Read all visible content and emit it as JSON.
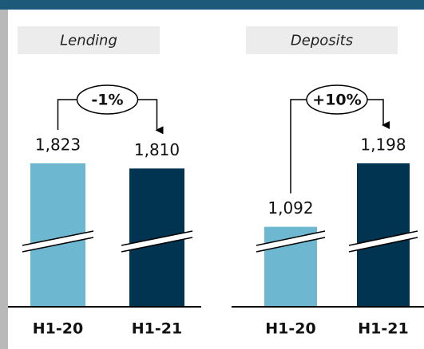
{
  "chart_data": [
    {
      "type": "bar",
      "title": "Lending",
      "categories": [
        "H1-20",
        "H1-21"
      ],
      "values": [
        1823,
        1810
      ],
      "value_labels": [
        "1,823",
        "1,810"
      ],
      "colors": [
        "#6db8d0",
        "#003450"
      ],
      "annotation": "-1%"
    },
    {
      "type": "bar",
      "title": "Deposits",
      "categories": [
        "H1-20",
        "H1-21"
      ],
      "values": [
        1092,
        1198
      ],
      "value_labels": [
        "1,092",
        "1,198"
      ],
      "colors": [
        "#6db8d0",
        "#003450"
      ],
      "annotation": "+10%"
    }
  ]
}
